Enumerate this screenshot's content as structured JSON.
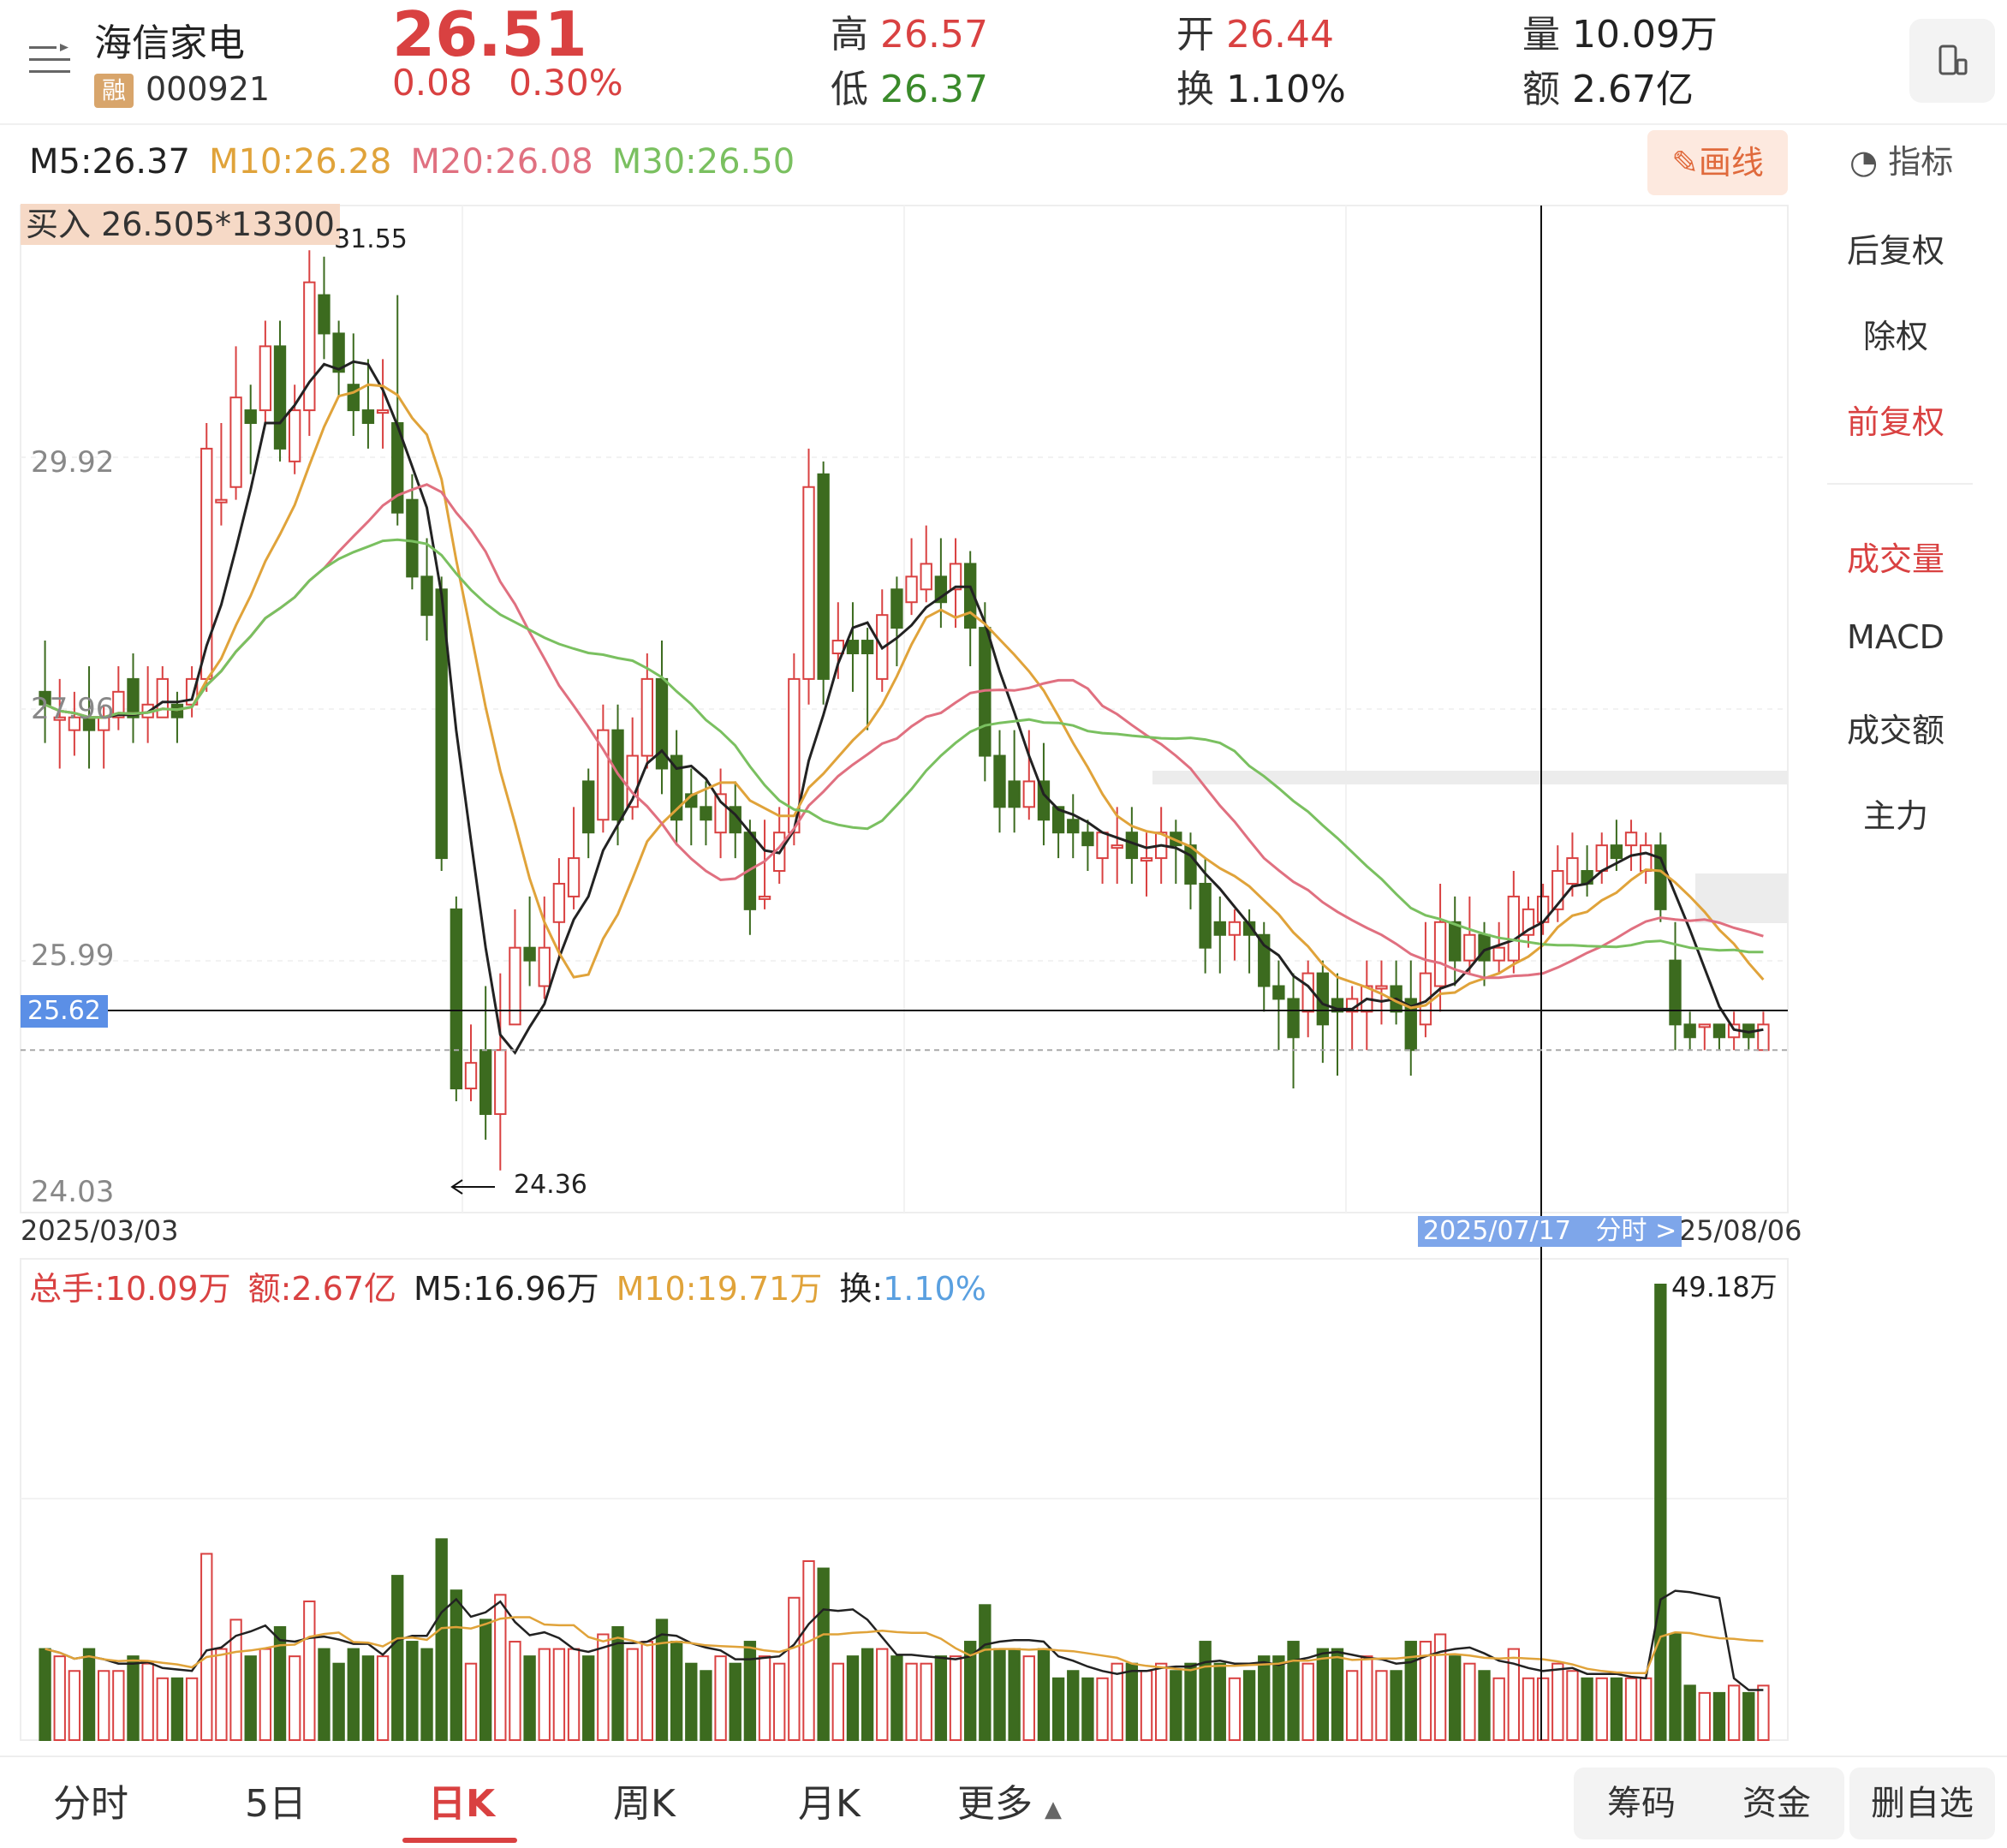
{
  "stock": {
    "name": "海信家电",
    "badge": "融",
    "code": "000921",
    "price": "26.51",
    "change": "0.08",
    "change_pct": "0.30%"
  },
  "stats": {
    "high_label": "高",
    "high": "26.57",
    "low_label": "低",
    "low": "26.37",
    "open_label": "开",
    "open": "26.44",
    "turnover_label": "换",
    "turnover": "1.10%",
    "volume_label": "量",
    "volume": "10.09万",
    "amount_label": "额",
    "amount": "2.67亿"
  },
  "ma": {
    "m5": "M5:26.37",
    "m10": "M10:26.28",
    "m20": "M20:26.08",
    "m30": "M30:26.50"
  },
  "toolbar": {
    "draw": "画线",
    "indicator": "指标"
  },
  "side_menu": [
    "后复权",
    "除权",
    "前复权",
    "成交量",
    "MACD",
    "成交额",
    "主力"
  ],
  "chart_labels": {
    "buy_tag": "买入 26.505*13300",
    "high_mark": "31.55",
    "low_mark": "24.36",
    "y_ticks": [
      "29.92",
      "27.96",
      "25.99",
      "24.03"
    ],
    "cursor_price": "25.62",
    "date_start": "2025/03/03",
    "date_end": "2025/08/06",
    "cursor_date": "2025/07/17",
    "cursor_sub": "分时 >",
    "vol_max": "49.18万"
  },
  "vol_legend": {
    "total": "总手:10.09万",
    "amount": "额:2.67亿",
    "m5": "M5:16.96万",
    "m10": "M10:19.71万",
    "turn_label": "换:",
    "turn": "1.10%"
  },
  "tabs": [
    "分时",
    "5日",
    "日K",
    "周K",
    "月K",
    "更多"
  ],
  "tools": {
    "chip": "筹码",
    "fund": "资金",
    "delete": "删自选"
  },
  "colors": {
    "up": "#d94141",
    "down": "#3c6b1f",
    "m5": "#222222",
    "m10": "#e0a33a",
    "m20": "#e07080",
    "m30": "#7ac060"
  },
  "chart_data": {
    "type": "candlestick",
    "x_range": [
      "2025/03/03",
      "2025/08/06"
    ],
    "ylim": [
      24.03,
      31.9
    ],
    "high": 31.55,
    "low": 24.36,
    "candles": [
      [
        28.1,
        28.0,
        28.5,
        27.7
      ],
      [
        27.9,
        27.9,
        28.2,
        27.5
      ],
      [
        27.8,
        27.9,
        28.1,
        27.6
      ],
      [
        27.9,
        27.8,
        28.3,
        27.5
      ],
      [
        27.8,
        27.9,
        28.0,
        27.5
      ],
      [
        27.9,
        28.1,
        28.3,
        27.8
      ],
      [
        28.2,
        27.9,
        28.4,
        27.7
      ],
      [
        27.9,
        28.0,
        28.3,
        27.7
      ],
      [
        27.9,
        28.2,
        28.3,
        27.9
      ],
      [
        28.0,
        27.9,
        28.1,
        27.7
      ],
      [
        28.0,
        28.2,
        28.3,
        27.9
      ],
      [
        28.2,
        30.0,
        30.2,
        28.1
      ],
      [
        29.6,
        29.6,
        30.2,
        29.4
      ],
      [
        29.7,
        30.4,
        30.8,
        29.6
      ],
      [
        30.3,
        30.2,
        30.5,
        29.8
      ],
      [
        30.3,
        30.8,
        31.0,
        30.2
      ],
      [
        30.8,
        30.0,
        31.0,
        29.9
      ],
      [
        29.9,
        30.3,
        30.5,
        29.8
      ],
      [
        30.3,
        31.3,
        31.55,
        30.1
      ],
      [
        31.2,
        30.9,
        31.5,
        30.7
      ],
      [
        30.9,
        30.6,
        31.0,
        30.4
      ],
      [
        30.5,
        30.3,
        30.9,
        30.1
      ],
      [
        30.3,
        30.2,
        30.7,
        30.0
      ],
      [
        30.3,
        30.3,
        30.7,
        30.0
      ],
      [
        30.2,
        29.5,
        31.2,
        29.4
      ],
      [
        29.6,
        29.0,
        29.8,
        28.9
      ],
      [
        29.0,
        28.7,
        29.3,
        28.5
      ],
      [
        28.9,
        26.8,
        29.0,
        26.7
      ],
      [
        26.4,
        25.0,
        26.5,
        24.9
      ],
      [
        25.0,
        25.2,
        25.5,
        24.9
      ],
      [
        25.3,
        24.8,
        25.8,
        24.6
      ],
      [
        24.8,
        25.3,
        25.9,
        24.36
      ],
      [
        25.5,
        26.1,
        26.4,
        25.5
      ],
      [
        26.1,
        26.0,
        26.5,
        25.8
      ],
      [
        25.8,
        26.1,
        26.5,
        25.7
      ],
      [
        26.3,
        26.6,
        26.8,
        26.0
      ],
      [
        26.5,
        26.8,
        27.2,
        26.4
      ],
      [
        27.4,
        27.0,
        27.5,
        26.8
      ],
      [
        27.1,
        27.8,
        28.0,
        27.0
      ],
      [
        27.8,
        27.1,
        28.0,
        26.9
      ],
      [
        27.2,
        27.6,
        27.9,
        27.1
      ],
      [
        27.6,
        28.2,
        28.4,
        27.5
      ],
      [
        28.2,
        27.5,
        28.5,
        27.3
      ],
      [
        27.6,
        27.1,
        27.8,
        26.9
      ],
      [
        27.3,
        27.2,
        27.5,
        26.9
      ],
      [
        27.2,
        27.1,
        27.4,
        26.9
      ],
      [
        27.0,
        27.3,
        27.5,
        26.8
      ],
      [
        27.2,
        27.0,
        27.4,
        26.8
      ],
      [
        27.0,
        26.4,
        27.1,
        26.2
      ],
      [
        26.5,
        26.5,
        27.1,
        26.4
      ],
      [
        26.7,
        27.0,
        27.2,
        26.6
      ],
      [
        27.0,
        28.2,
        28.4,
        26.9
      ],
      [
        28.2,
        29.7,
        30.0,
        28.0
      ],
      [
        29.8,
        28.2,
        29.9,
        28.0
      ],
      [
        28.4,
        28.5,
        28.8,
        28.2
      ],
      [
        28.5,
        28.4,
        28.8,
        28.1
      ],
      [
        28.5,
        28.4,
        28.6,
        27.8
      ],
      [
        28.2,
        28.7,
        28.9,
        28.1
      ],
      [
        28.9,
        28.6,
        29.0,
        28.3
      ],
      [
        28.8,
        29.0,
        29.3,
        28.7
      ],
      [
        28.9,
        29.1,
        29.4,
        28.8
      ],
      [
        29.0,
        28.8,
        29.3,
        28.6
      ],
      [
        28.9,
        29.1,
        29.3,
        28.6
      ],
      [
        29.1,
        28.6,
        29.2,
        28.3
      ],
      [
        28.6,
        27.6,
        28.8,
        27.4
      ],
      [
        27.6,
        27.2,
        27.8,
        27.0
      ],
      [
        27.4,
        27.2,
        27.8,
        27.0
      ],
      [
        27.2,
        27.4,
        27.8,
        27.1
      ],
      [
        27.4,
        27.1,
        27.7,
        26.9
      ],
      [
        27.2,
        27.0,
        27.2,
        26.8
      ],
      [
        27.1,
        27.0,
        27.3,
        26.8
      ],
      [
        27.0,
        26.9,
        27.1,
        26.7
      ],
      [
        26.8,
        27.0,
        27.0,
        26.6
      ],
      [
        26.9,
        26.9,
        27.2,
        26.6
      ],
      [
        27.0,
        26.8,
        27.2,
        26.6
      ],
      [
        26.8,
        26.8,
        27.0,
        26.5
      ],
      [
        26.8,
        27.0,
        27.2,
        26.6
      ],
      [
        27.0,
        26.9,
        27.1,
        26.6
      ],
      [
        26.9,
        26.6,
        27.0,
        26.4
      ],
      [
        26.6,
        26.1,
        26.8,
        25.9
      ],
      [
        26.3,
        26.2,
        26.5,
        25.9
      ],
      [
        26.2,
        26.3,
        26.4,
        26.0
      ],
      [
        26.3,
        26.2,
        26.4,
        25.9
      ],
      [
        26.2,
        25.8,
        26.3,
        25.6
      ],
      [
        25.8,
        25.7,
        26.0,
        25.3
      ],
      [
        25.7,
        25.4,
        25.9,
        25.0
      ],
      [
        25.6,
        25.9,
        26.0,
        25.4
      ],
      [
        25.9,
        25.5,
        26.0,
        25.2
      ],
      [
        25.7,
        25.6,
        25.9,
        25.1
      ],
      [
        25.6,
        25.7,
        25.8,
        25.3
      ],
      [
        25.6,
        25.8,
        26.0,
        25.3
      ],
      [
        25.8,
        25.8,
        26.0,
        25.5
      ],
      [
        25.8,
        25.6,
        26.0,
        25.5
      ],
      [
        25.7,
        25.3,
        26.0,
        25.1
      ],
      [
        25.5,
        25.9,
        26.3,
        25.4
      ],
      [
        25.8,
        26.3,
        26.6,
        25.6
      ],
      [
        26.3,
        26.0,
        26.5,
        25.8
      ],
      [
        26.0,
        26.2,
        26.5,
        25.9
      ],
      [
        26.2,
        26.0,
        26.3,
        25.8
      ],
      [
        26.0,
        26.1,
        26.3,
        25.9
      ],
      [
        26.0,
        26.5,
        26.7,
        25.9
      ],
      [
        26.2,
        26.4,
        26.5,
        26.1
      ],
      [
        26.3,
        26.5,
        26.6,
        26.2
      ],
      [
        26.4,
        26.7,
        26.9,
        26.3
      ],
      [
        26.6,
        26.8,
        27.0,
        26.5
      ],
      [
        26.7,
        26.6,
        26.9,
        26.5
      ],
      [
        26.7,
        26.9,
        27.0,
        26.6
      ],
      [
        26.9,
        26.8,
        27.1,
        26.7
      ],
      [
        26.9,
        27.0,
        27.1,
        26.7
      ],
      [
        26.7,
        26.9,
        27.0,
        26.6
      ],
      [
        26.9,
        26.4,
        27.0,
        26.3
      ],
      [
        26.0,
        25.5,
        26.3,
        25.3
      ],
      [
        25.5,
        25.4,
        25.6,
        25.3
      ],
      [
        25.5,
        25.5,
        25.5,
        25.3
      ],
      [
        25.5,
        25.4,
        25.5,
        25.3
      ],
      [
        25.4,
        25.5,
        25.6,
        25.3
      ],
      [
        25.5,
        25.4,
        25.5,
        25.3
      ],
      [
        25.3,
        25.5,
        25.6,
        25.3
      ]
    ],
    "volume_max_label": "49.18万"
  }
}
